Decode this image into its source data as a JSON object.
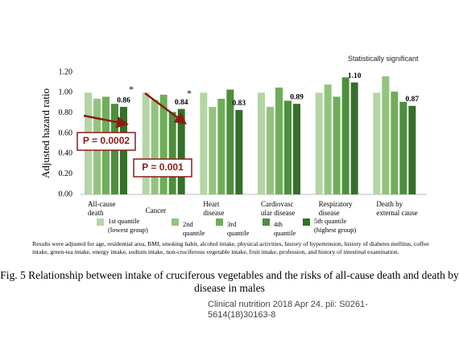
{
  "chart_data": {
    "type": "bar",
    "y_label": "Adjusted hazard ratio",
    "categories": [
      "All-cause\ndeath",
      "Cancer",
      "Heart\ndisease",
      "Cardiovasc\nular disease",
      "Respiratory\ndisease",
      "Death  by\nexternal cause"
    ],
    "series": [
      {
        "name": "1st quantile\n(lowest group)",
        "color": "#b4d5a6",
        "values": [
          1.0,
          1.0,
          1.0,
          1.0,
          1.0,
          1.0
        ]
      },
      {
        "name": "2nd\nquantile",
        "color": "#92c47e",
        "values": [
          0.94,
          0.93,
          0.86,
          0.86,
          1.08,
          1.16
        ]
      },
      {
        "name": "3rd\nquantile",
        "color": "#6fae58",
        "values": [
          0.96,
          0.98,
          0.94,
          1.05,
          0.96,
          1.01
        ]
      },
      {
        "name": "4th\nquantile",
        "color": "#4d8f3c",
        "values": [
          0.89,
          0.81,
          1.03,
          0.92,
          1.15,
          0.91
        ]
      },
      {
        "name": "5th quantile\n(highest group)",
        "color": "#356f2a",
        "values": [
          0.86,
          0.84,
          0.83,
          0.89,
          1.1,
          0.87
        ],
        "value_labels": [
          "0.86",
          "0.84",
          "0.83",
          "0.89",
          "1.10",
          "0.87"
        ]
      }
    ],
    "ylim": [
      0,
      1.2
    ],
    "yticks": [
      {
        "value": 0,
        "label": "0.00"
      },
      {
        "value": 0.2,
        "label": "0.20"
      },
      {
        "value": 0.4,
        "label": "0.40"
      },
      {
        "value": 0.6,
        "label": "0.60"
      },
      {
        "value": 0.8,
        "label": "0.80"
      },
      {
        "value": 1.0,
        "label": "1.00"
      },
      {
        "value": 1.2,
        "label": "1.20"
      }
    ],
    "grid": false,
    "annotations": [
      "*",
      "*",
      "P = 0.0002",
      "P = 0.001"
    ]
  },
  "header": "Statistically significant",
  "note": "Results were adjusted for age, residential area, BMI, smoking habit, alcohol intake, physical activities, history of hypertension, history of diabetes mellitus,  coffee intake, green-tea intake, energy intake, sodium intake, non-cruciferous vegetable intake, fruit intake, profession, and history of intestinal examination.",
  "caption": "Fig. 5 Relationship between intake of cruciferous vegetables and the risks of all-cause death and death by disease in males",
  "citation": "Clinical nutrition  2018 Apr 24. pii: S0261-5614(18)30163-8"
}
